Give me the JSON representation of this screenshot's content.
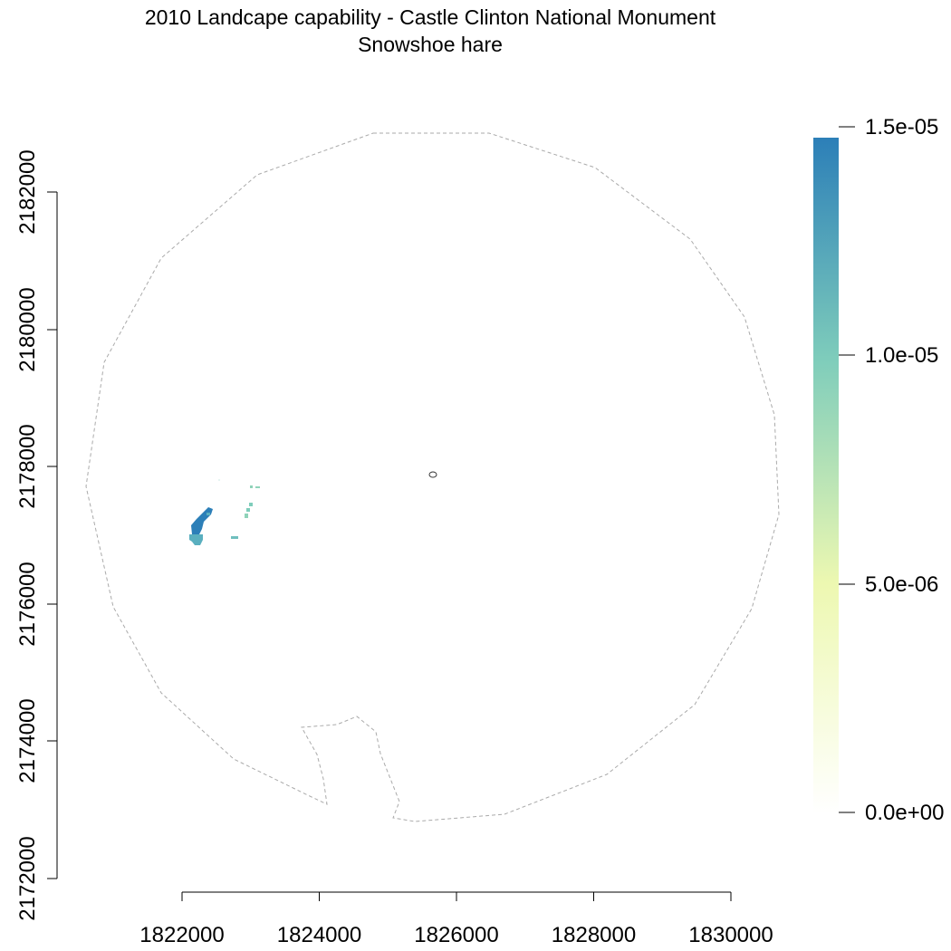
{
  "title": "2010 Landcape capability - Castle Clinton National Monument",
  "subtitle": "Snowshoe hare",
  "map": {
    "x_ticks": [
      "1822000",
      "1824000",
      "1826000",
      "1828000",
      "1830000"
    ],
    "y_ticks": [
      "2172000",
      "2174000",
      "2176000",
      "2178000",
      "2180000",
      "2182000"
    ],
    "boundary_style": "dashed-gray",
    "colors": {
      "boundary": "#aaaaaa",
      "high": "#2c7fb8",
      "mid": "#5aafbf",
      "low": "#7fcdbb"
    }
  },
  "legend": {
    "ticks": [
      "1.5e-05",
      "1.0e-05",
      "5.0e-06",
      "0.0e+00"
    ],
    "gradient": [
      "#2c7fb8",
      "#7fcdbb",
      "#edf8b1",
      "#ffffff"
    ]
  }
}
